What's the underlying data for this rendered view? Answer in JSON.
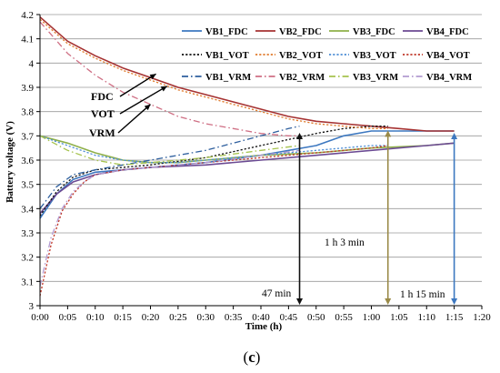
{
  "chart_data": {
    "type": "line",
    "title": "",
    "xlabel": "Time (h)",
    "ylabel": "Battery voltage (V)",
    "xlim_min": [
      0,
      80
    ],
    "ylim": [
      3,
      4.2
    ],
    "x_ticks": [
      {
        "min": 0,
        "label": "0:00"
      },
      {
        "min": 5,
        "label": "0:05"
      },
      {
        "min": 10,
        "label": "0:10"
      },
      {
        "min": 15,
        "label": "0:15"
      },
      {
        "min": 20,
        "label": "0:20"
      },
      {
        "min": 25,
        "label": "0:25"
      },
      {
        "min": 30,
        "label": "0:30"
      },
      {
        "min": 35,
        "label": "0:35"
      },
      {
        "min": 40,
        "label": "0:40"
      },
      {
        "min": 45,
        "label": "0:45"
      },
      {
        "min": 50,
        "label": "0:50"
      },
      {
        "min": 55,
        "label": "0:55"
      },
      {
        "min": 60,
        "label": "1:00"
      },
      {
        "min": 65,
        "label": "1:05"
      },
      {
        "min": 70,
        "label": "1:10"
      },
      {
        "min": 75,
        "label": "1:15"
      },
      {
        "min": 80,
        "label": "1:20"
      }
    ],
    "y_ticks": [
      {
        "v": 3.0,
        "label": "3"
      },
      {
        "v": 3.1,
        "label": "3.1"
      },
      {
        "v": 3.2,
        "label": "3.2"
      },
      {
        "v": 3.3,
        "label": "3.3"
      },
      {
        "v": 3.4,
        "label": "3.4"
      },
      {
        "v": 3.5,
        "label": "3.5"
      },
      {
        "v": 3.6,
        "label": "3.6"
      },
      {
        "v": 3.7,
        "label": "3.7"
      },
      {
        "v": 3.8,
        "label": "3.8"
      },
      {
        "v": 3.9,
        "label": "3.9"
      },
      {
        "v": 4.0,
        "label": "4"
      },
      {
        "v": 4.1,
        "label": "4.1"
      },
      {
        "v": 4.2,
        "label": "4.2"
      }
    ],
    "grid": "horizontal",
    "legend_placement": "top-right",
    "series": [
      {
        "name": "VB1_FDC",
        "color": "#3d78c0",
        "dash": "solid",
        "x": [
          0,
          3,
          6,
          10,
          15,
          20,
          30,
          40,
          50,
          55,
          60,
          65,
          70,
          75
        ],
        "y": [
          3.36,
          3.46,
          3.52,
          3.55,
          3.56,
          3.57,
          3.59,
          3.62,
          3.66,
          3.7,
          3.72,
          3.72,
          3.72,
          3.72
        ]
      },
      {
        "name": "VB2_FDC",
        "color": "#a63232",
        "dash": "solid",
        "x": [
          0,
          5,
          10,
          15,
          20,
          25,
          30,
          35,
          40,
          45,
          50,
          55,
          60,
          65,
          70,
          75
        ],
        "y": [
          4.19,
          4.09,
          4.03,
          3.98,
          3.94,
          3.9,
          3.87,
          3.84,
          3.81,
          3.78,
          3.76,
          3.75,
          3.74,
          3.73,
          3.72,
          3.72
        ]
      },
      {
        "name": "VB3_FDC",
        "color": "#8fb04a",
        "dash": "solid",
        "x": [
          0,
          5,
          10,
          15,
          20,
          25,
          30,
          40,
          50,
          60,
          70,
          75
        ],
        "y": [
          3.7,
          3.67,
          3.63,
          3.6,
          3.59,
          3.59,
          3.6,
          3.62,
          3.63,
          3.65,
          3.66,
          3.67
        ]
      },
      {
        "name": "VB4_FDC",
        "color": "#6b4a93",
        "dash": "solid",
        "x": [
          0,
          3,
          6,
          10,
          15,
          20,
          30,
          40,
          50,
          60,
          70,
          75
        ],
        "y": [
          3.38,
          3.46,
          3.51,
          3.54,
          3.56,
          3.57,
          3.58,
          3.6,
          3.62,
          3.64,
          3.66,
          3.67
        ]
      },
      {
        "name": "VB1_VOT",
        "color": "#111111",
        "dash": "dot",
        "x": [
          0,
          3,
          6,
          10,
          15,
          20,
          30,
          40,
          50,
          55,
          60,
          63
        ],
        "y": [
          3.37,
          3.47,
          3.53,
          3.56,
          3.57,
          3.58,
          3.61,
          3.66,
          3.71,
          3.73,
          3.74,
          3.74
        ]
      },
      {
        "name": "VB2_VOT",
        "color": "#e07b2c",
        "dash": "dot",
        "x": [
          0,
          5,
          10,
          15,
          20,
          25,
          30,
          35,
          40,
          45,
          50,
          55,
          60,
          63
        ],
        "y": [
          4.18,
          4.08,
          4.02,
          3.97,
          3.93,
          3.89,
          3.86,
          3.83,
          3.8,
          3.77,
          3.75,
          3.74,
          3.73,
          3.73
        ]
      },
      {
        "name": "VB3_VOT",
        "color": "#4f8fd6",
        "dash": "dot",
        "x": [
          0,
          5,
          10,
          15,
          20,
          25,
          30,
          40,
          50,
          60,
          63
        ],
        "y": [
          3.7,
          3.66,
          3.62,
          3.6,
          3.59,
          3.59,
          3.6,
          3.62,
          3.64,
          3.66,
          3.66
        ]
      },
      {
        "name": "VB4_VOT",
        "color": "#c0392b",
        "dash": "dot",
        "x": [
          0,
          2,
          4,
          6,
          8,
          10,
          15,
          20,
          30,
          40,
          50,
          60,
          63
        ],
        "y": [
          3.04,
          3.25,
          3.39,
          3.46,
          3.51,
          3.54,
          3.56,
          3.57,
          3.59,
          3.61,
          3.63,
          3.65,
          3.66
        ]
      },
      {
        "name": "VB1_VRM",
        "color": "#2e5f9e",
        "dash": "dashdot",
        "x": [
          0,
          3,
          6,
          10,
          15,
          20,
          30,
          35,
          40,
          45,
          47
        ],
        "y": [
          3.4,
          3.49,
          3.54,
          3.56,
          3.58,
          3.6,
          3.64,
          3.67,
          3.7,
          3.73,
          3.74
        ]
      },
      {
        "name": "VB2_VRM",
        "color": "#cf6f84",
        "dash": "dashdot",
        "x": [
          0,
          5,
          10,
          15,
          20,
          25,
          30,
          35,
          40,
          45,
          47
        ],
        "y": [
          4.17,
          4.04,
          3.95,
          3.88,
          3.83,
          3.78,
          3.75,
          3.73,
          3.71,
          3.7,
          3.7
        ]
      },
      {
        "name": "VB3_VRM",
        "color": "#a6c34f",
        "dash": "dashdot",
        "x": [
          0,
          5,
          10,
          15,
          20,
          30,
          40,
          47
        ],
        "y": [
          3.7,
          3.64,
          3.6,
          3.58,
          3.59,
          3.61,
          3.64,
          3.66
        ]
      },
      {
        "name": "VB4_VRM",
        "color": "#b39bd1",
        "dash": "dashdot",
        "x": [
          0,
          2,
          4,
          6,
          8,
          10,
          15,
          20,
          30,
          40,
          47
        ],
        "y": [
          3.08,
          3.28,
          3.4,
          3.47,
          3.51,
          3.54,
          3.56,
          3.57,
          3.59,
          3.62,
          3.64
        ]
      }
    ],
    "annotations": [
      {
        "text": "FDC",
        "arrow_to": {
          "min": 21,
          "v": 3.955
        }
      },
      {
        "text": "VOT",
        "arrow_to": {
          "min": 23,
          "v": 3.905
        }
      },
      {
        "text": "VRM",
        "arrow_to": {
          "min": 20,
          "v": 3.83
        }
      }
    ],
    "time_markers": [
      {
        "text": "47 min",
        "min": 47,
        "v_top": 3.72,
        "color": "#111111"
      },
      {
        "text": "1 h 3 min",
        "min": 63,
        "v_top": 3.73,
        "color": "#9a8a48"
      },
      {
        "text": "1 h 15 min",
        "min": 75,
        "v_top": 3.72,
        "color": "#3d78c0"
      }
    ],
    "panel_label": {
      "open": "(",
      "letter": "c",
      "close": ")"
    }
  }
}
